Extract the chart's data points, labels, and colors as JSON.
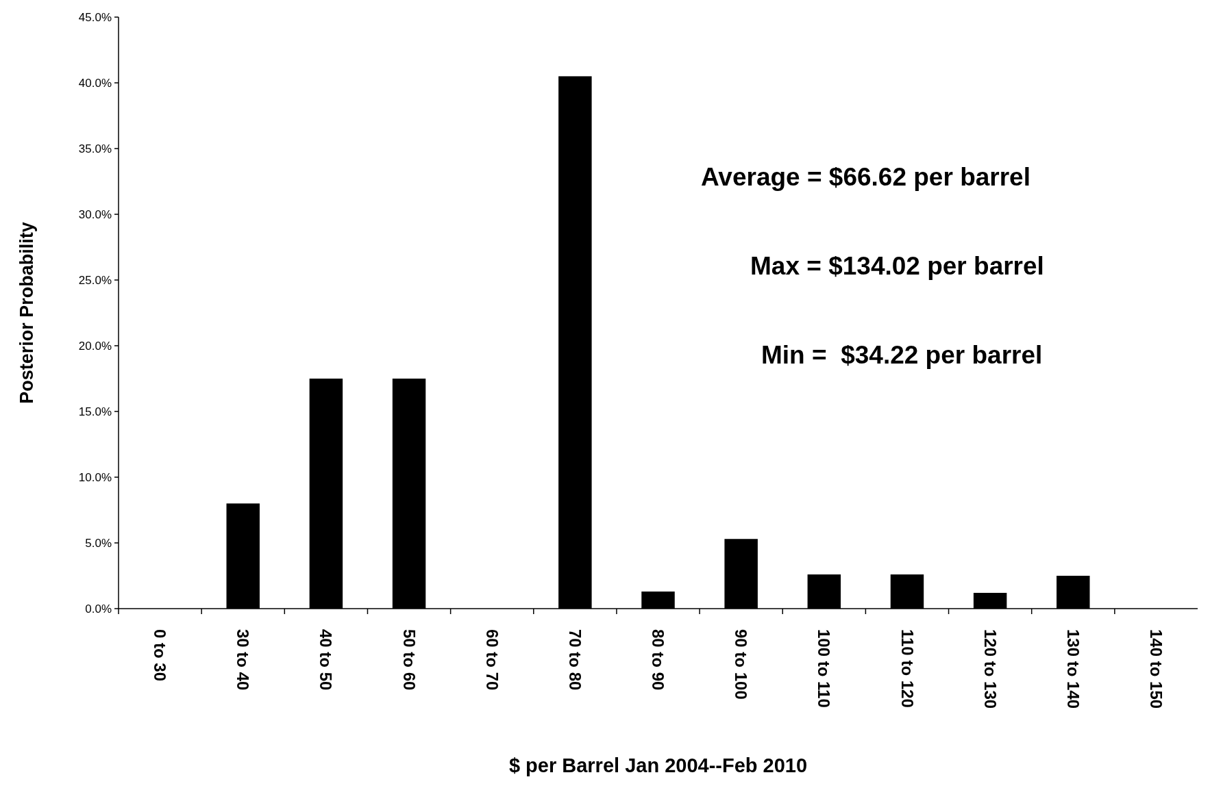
{
  "chart_data": {
    "type": "bar",
    "xlabel": "$ per Barrel Jan 2004--Feb 2010",
    "ylabel": "Posterior Probability",
    "categories": [
      "0 to 30",
      "30 to 40",
      "40 to 50",
      "50 to 60",
      "60 to 70",
      "70 to 80",
      "80 to 90",
      "90 to 100",
      "100 to 110",
      "110 to 120",
      "120 to 130",
      "130 to 140",
      "140 to 150"
    ],
    "values": [
      0,
      8.0,
      17.5,
      17.5,
      0,
      40.5,
      1.3,
      5.3,
      2.6,
      2.6,
      1.2,
      2.5,
      0
    ],
    "color": "#000000",
    "ylim": [
      0,
      45
    ],
    "yticks": [
      {
        "value": 0,
        "label": "0.0%"
      },
      {
        "value": 5,
        "label": "5.0%"
      },
      {
        "value": 10,
        "label": "10.0%"
      },
      {
        "value": 15,
        "label": "15.0%"
      },
      {
        "value": 20,
        "label": "20.0%"
      },
      {
        "value": 25,
        "label": "25.0%"
      },
      {
        "value": 30,
        "label": "30.0%"
      },
      {
        "value": 35,
        "label": "35.0%"
      },
      {
        "value": 40,
        "label": "40.0%"
      },
      {
        "value": 45,
        "label": "45.0%"
      }
    ],
    "annotations": [
      "Average = $66.62 per barrel",
      "Max = $134.02 per barrel",
      "Min =  $34.22 per barrel"
    ],
    "grid": false
  }
}
